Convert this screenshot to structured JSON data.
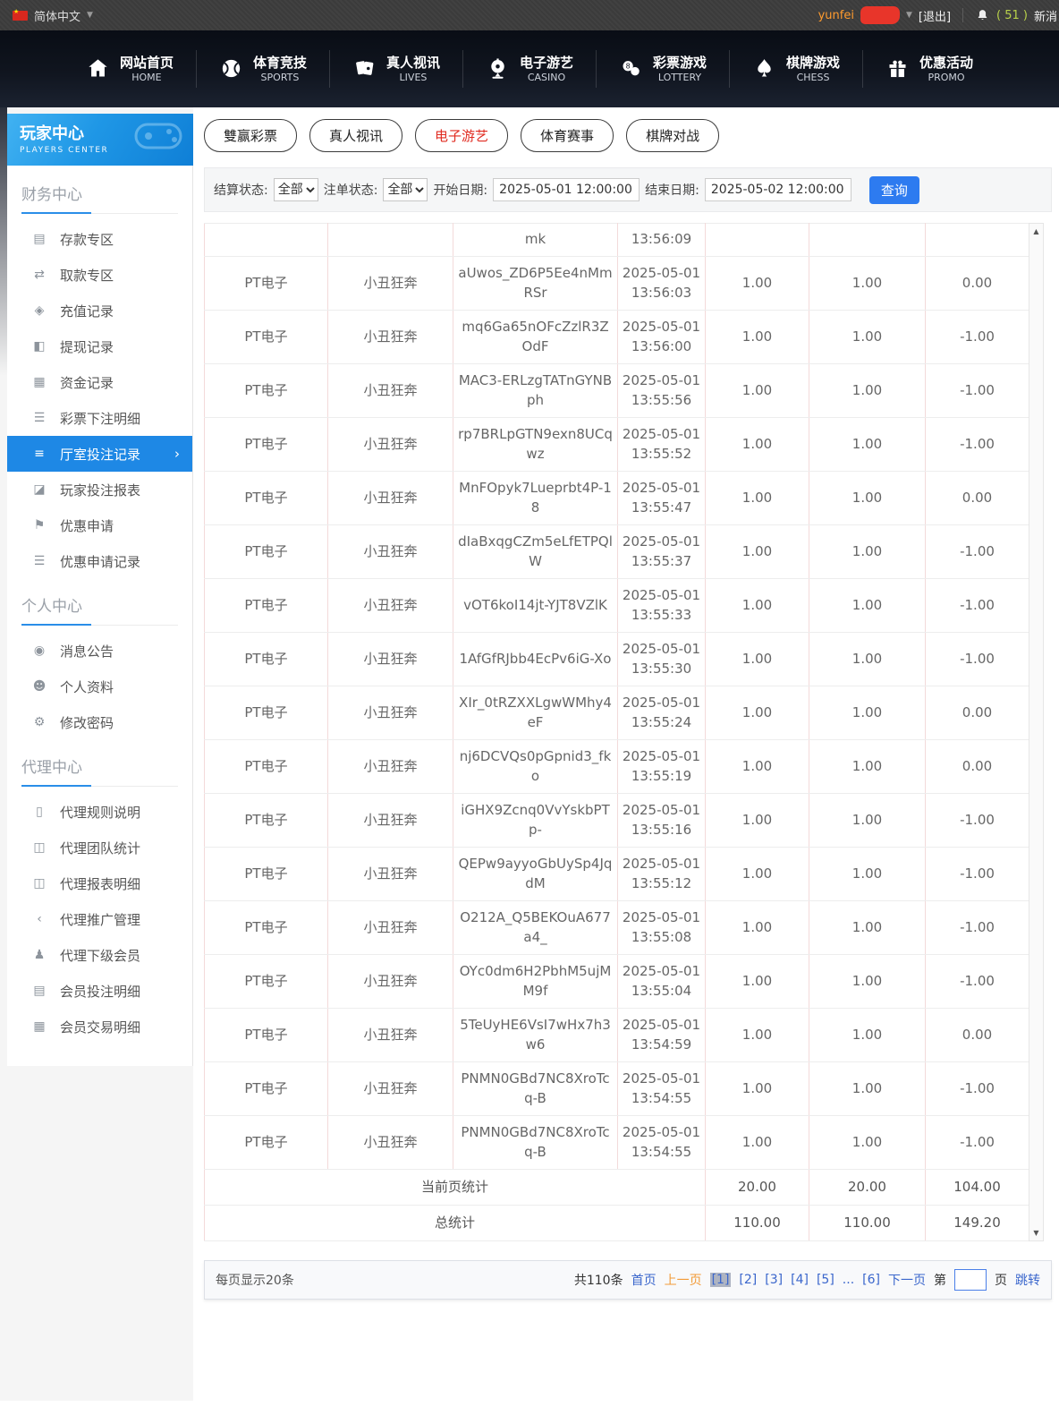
{
  "colors": {
    "accent_blue": "#1e88e5",
    "tab_active_red": "#e02b20",
    "link_blue": "#3a66cc",
    "prev_orange": "#f29b38",
    "count_green": "#b9d24a",
    "query_blue": "#2d7bf0"
  },
  "topbar": {
    "language": "简体中文",
    "username": "yunfei",
    "logout": "[退出]",
    "message_count": "( 51 )",
    "message_label": "新消"
  },
  "nav": {
    "items": [
      {
        "key": "home",
        "cn": "网站首页",
        "en": "HOME",
        "icon": "home-icon"
      },
      {
        "key": "sports",
        "cn": "体育竞技",
        "en": "SPORTS",
        "icon": "sports-icon"
      },
      {
        "key": "lives",
        "cn": "真人视讯",
        "en": "LIVES",
        "icon": "cards-icon"
      },
      {
        "key": "casino",
        "cn": "电子游艺",
        "en": "CASINO",
        "icon": "roulette-icon"
      },
      {
        "key": "lottery",
        "cn": "彩票游戏",
        "en": "LOTTERY",
        "icon": "lottery-balls-icon"
      },
      {
        "key": "chess",
        "cn": "棋牌游戏",
        "en": "CHESS",
        "icon": "spade-icon"
      },
      {
        "key": "promo",
        "cn": "优惠活动",
        "en": "PROMO",
        "icon": "gift-icon"
      }
    ]
  },
  "sidebar": {
    "title": "玩家中心",
    "subtitle": "PLAYERS CENTER",
    "sections": [
      {
        "title": "财务中心",
        "items": [
          {
            "key": "deposit-zone",
            "label": "存款专区",
            "icon": "deposit-card-icon"
          },
          {
            "key": "withdraw-zone",
            "label": "取款专区",
            "icon": "withdraw-hand-icon"
          },
          {
            "key": "recharge-records",
            "label": "充值记录",
            "icon": "money-bag-icon"
          },
          {
            "key": "withdraw-records",
            "label": "提现记录",
            "icon": "wallet-icon"
          },
          {
            "key": "funds-records",
            "label": "资金记录",
            "icon": "funds-icon"
          },
          {
            "key": "lottery-bet-details",
            "label": "彩票下注明细",
            "icon": "list-doc-icon"
          },
          {
            "key": "hall-bet-records",
            "label": "厅室投注记录",
            "icon": "hall-bet-list-icon",
            "active": true
          },
          {
            "key": "player-bet-report",
            "label": "玩家投注报表",
            "icon": "report-chart-icon"
          },
          {
            "key": "promo-apply",
            "label": "优惠申请",
            "icon": "promo-flag-icon"
          },
          {
            "key": "promo-apply-records",
            "label": "优惠申请记录",
            "icon": "promo-list-icon"
          }
        ]
      },
      {
        "title": "个人中心",
        "items": [
          {
            "key": "announcements",
            "label": "消息公告",
            "icon": "bell-icon"
          },
          {
            "key": "profile",
            "label": "个人资料",
            "icon": "user-icon"
          },
          {
            "key": "change-password",
            "label": "修改密码",
            "icon": "gear-icon"
          }
        ]
      },
      {
        "title": "代理中心",
        "items": [
          {
            "key": "agent-rules",
            "label": "代理规则说明",
            "icon": "doc-icon"
          },
          {
            "key": "agent-team-stats",
            "label": "代理团队统计",
            "icon": "stats-icon"
          },
          {
            "key": "agent-report-details",
            "label": "代理报表明细",
            "icon": "report-detail-icon"
          },
          {
            "key": "agent-promotion",
            "label": "代理推广管理",
            "icon": "share-icon"
          },
          {
            "key": "agent-sub-members",
            "label": "代理下级会员",
            "icon": "members-icon"
          },
          {
            "key": "member-bet-details",
            "label": "会员投注明细",
            "icon": "member-bet-icon"
          },
          {
            "key": "member-transactions",
            "label": "会员交易明细",
            "icon": "transaction-icon"
          }
        ]
      }
    ]
  },
  "tabs": [
    {
      "key": "lottery",
      "label": "雙赢彩票"
    },
    {
      "key": "live",
      "label": "真人视讯"
    },
    {
      "key": "casino",
      "label": "电子游艺",
      "active": true
    },
    {
      "key": "sports",
      "label": "体育赛事"
    },
    {
      "key": "chess",
      "label": "棋牌对战"
    }
  ],
  "filters": {
    "settle_label": "结算状态:",
    "settle_value": "全部",
    "order_label": "注单状态:",
    "order_value": "全部",
    "start_label": "开始日期:",
    "start_value": "2025-05-01 12:00:00",
    "end_label": "结束日期:",
    "end_value": "2025-05-02 12:00:00",
    "query_label": "查询"
  },
  "table": {
    "partial_row": {
      "order_id_tail": "mk",
      "time": "13:56:09"
    },
    "rows": [
      {
        "platform": "PT电子",
        "game": "小丑狂奔",
        "order_id": "aUwos_ZD6P5Ee4nMmRSr",
        "date": "2025-05-01",
        "time": "13:56:03",
        "bet": "1.00",
        "valid": "1.00",
        "result": "0.00"
      },
      {
        "platform": "PT电子",
        "game": "小丑狂奔",
        "order_id": "mq6Ga65nOFcZzlR3ZOdF",
        "date": "2025-05-01",
        "time": "13:56:00",
        "bet": "1.00",
        "valid": "1.00",
        "result": "-1.00"
      },
      {
        "platform": "PT电子",
        "game": "小丑狂奔",
        "order_id": "MAC3-ERLzgTATnGYNBph",
        "date": "2025-05-01",
        "time": "13:55:56",
        "bet": "1.00",
        "valid": "1.00",
        "result": "-1.00"
      },
      {
        "platform": "PT电子",
        "game": "小丑狂奔",
        "order_id": "rp7BRLpGTN9exn8UCqwz",
        "date": "2025-05-01",
        "time": "13:55:52",
        "bet": "1.00",
        "valid": "1.00",
        "result": "-1.00"
      },
      {
        "platform": "PT电子",
        "game": "小丑狂奔",
        "order_id": "MnFOpyk7Lueprbt4P-18",
        "date": "2025-05-01",
        "time": "13:55:47",
        "bet": "1.00",
        "valid": "1.00",
        "result": "0.00"
      },
      {
        "platform": "PT电子",
        "game": "小丑狂奔",
        "order_id": "dIaBxqgCZm5eLfETPQlW",
        "date": "2025-05-01",
        "time": "13:55:37",
        "bet": "1.00",
        "valid": "1.00",
        "result": "-1.00"
      },
      {
        "platform": "PT电子",
        "game": "小丑狂奔",
        "order_id": "vOT6koI14jt-YJT8VZlK",
        "date": "2025-05-01",
        "time": "13:55:33",
        "bet": "1.00",
        "valid": "1.00",
        "result": "-1.00"
      },
      {
        "platform": "PT电子",
        "game": "小丑狂奔",
        "order_id": "1AfGfRJbb4EcPv6iG-Xo",
        "date": "2025-05-01",
        "time": "13:55:30",
        "bet": "1.00",
        "valid": "1.00",
        "result": "-1.00"
      },
      {
        "platform": "PT电子",
        "game": "小丑狂奔",
        "order_id": "XIr_0tRZXXLgwWMhy4eF",
        "date": "2025-05-01",
        "time": "13:55:24",
        "bet": "1.00",
        "valid": "1.00",
        "result": "0.00"
      },
      {
        "platform": "PT电子",
        "game": "小丑狂奔",
        "order_id": "nj6DCVQs0pGpnid3_fko",
        "date": "2025-05-01",
        "time": "13:55:19",
        "bet": "1.00",
        "valid": "1.00",
        "result": "0.00"
      },
      {
        "platform": "PT电子",
        "game": "小丑狂奔",
        "order_id": "iGHX9Zcnq0VvYskbPTp-",
        "date": "2025-05-01",
        "time": "13:55:16",
        "bet": "1.00",
        "valid": "1.00",
        "result": "-1.00"
      },
      {
        "platform": "PT电子",
        "game": "小丑狂奔",
        "order_id": "QEPw9ayyoGbUySp4JqdM",
        "date": "2025-05-01",
        "time": "13:55:12",
        "bet": "1.00",
        "valid": "1.00",
        "result": "-1.00"
      },
      {
        "platform": "PT电子",
        "game": "小丑狂奔",
        "order_id": "O212A_Q5BEKOuA677a4_",
        "date": "2025-05-01",
        "time": "13:55:08",
        "bet": "1.00",
        "valid": "1.00",
        "result": "-1.00"
      },
      {
        "platform": "PT电子",
        "game": "小丑狂奔",
        "order_id": "OYc0dm6H2PbhM5ujMM9f",
        "date": "2025-05-01",
        "time": "13:55:04",
        "bet": "1.00",
        "valid": "1.00",
        "result": "-1.00"
      },
      {
        "platform": "PT电子",
        "game": "小丑狂奔",
        "order_id": "5TeUyHE6VsI7wHx7h3w6",
        "date": "2025-05-01",
        "time": "13:54:59",
        "bet": "1.00",
        "valid": "1.00",
        "result": "0.00"
      },
      {
        "platform": "PT电子",
        "game": "小丑狂奔",
        "order_id": "PNMN0GBd7NC8XroTcq-B",
        "date": "2025-05-01",
        "time": "13:54:55",
        "bet": "1.00",
        "valid": "1.00",
        "result": "-1.00"
      },
      {
        "platform": "PT电子",
        "game": "小丑狂奔",
        "order_id": "PNMN0GBd7NC8XroTcq-B",
        "date": "2025-05-01",
        "time": "13:54:55",
        "bet": "1.00",
        "valid": "1.00",
        "result": "-1.00"
      }
    ],
    "current_page_total": {
      "label": "当前页统计",
      "bet": "20.00",
      "valid": "20.00",
      "result": "104.00"
    },
    "grand_total": {
      "label": "总统计",
      "bet": "110.00",
      "valid": "110.00",
      "result": "149.20"
    }
  },
  "pagination": {
    "per_page": "每页显示20条",
    "total": "共110条",
    "first": "首页",
    "prev": "上一页",
    "pages": [
      "[1]",
      "[2]",
      "[3]",
      "[4]",
      "[5]",
      "...",
      "[6]"
    ],
    "active_page": "[1]",
    "next": "下一页",
    "jump_prefix": "第",
    "jump_suffix": "页",
    "jump_action": "跳转"
  }
}
